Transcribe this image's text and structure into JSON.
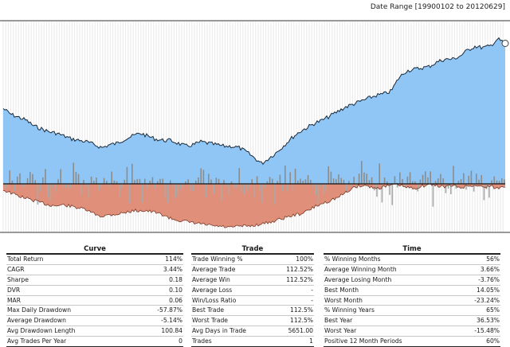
{
  "header": {
    "date_range": "Date Range [19900102 to 20120629]"
  },
  "colors": {
    "equity_fill": "#90c6f5",
    "drawdown_fill": "#e0907a",
    "bars_up": "#8c8c8c",
    "bars_down": "#a9a9a9",
    "line": "#1a2a3a"
  },
  "chart_data": {
    "type": "area",
    "x_range": [
      "19900102",
      "20120629"
    ],
    "series": [
      {
        "values": [
          0.52,
          0.48,
          0.46,
          0.44,
          0.4,
          0.38,
          0.36,
          0.35,
          0.33,
          0.31,
          0.3,
          0.29,
          0.27,
          0.25,
          0.27,
          0.28,
          0.31,
          0.33,
          0.35,
          0.33,
          0.31,
          0.3,
          0.3,
          0.28,
          0.26,
          0.27,
          0.29,
          0.28,
          0.27,
          0.26,
          0.26,
          0.25,
          0.22,
          0.18,
          0.14,
          0.18,
          0.22,
          0.27,
          0.32,
          0.36,
          0.39,
          0.42,
          0.44,
          0.47,
          0.5,
          0.53,
          0.55,
          0.57,
          0.59,
          0.61,
          0.62,
          0.64,
          0.73,
          0.78,
          0.79,
          0.8,
          0.81,
          0.84,
          0.86,
          0.86,
          0.88,
          0.92,
          0.95,
          0.94,
          0.95,
          1.0,
          0.97
        ]
      },
      {
        "values": [
          -0.08,
          -0.12,
          -0.16,
          -0.19,
          -0.22,
          -0.25,
          -0.28,
          -0.29,
          -0.28,
          -0.3,
          -0.32,
          -0.35,
          -0.4,
          -0.43,
          -0.41,
          -0.4,
          -0.38,
          -0.36,
          -0.35,
          -0.36,
          -0.38,
          -0.41,
          -0.46,
          -0.48,
          -0.5,
          -0.52,
          -0.53,
          -0.55,
          -0.56,
          -0.57,
          -0.58,
          -0.56,
          -0.56,
          -0.55,
          -0.53,
          -0.51,
          -0.48,
          -0.45,
          -0.42,
          -0.4,
          -0.36,
          -0.3,
          -0.26,
          -0.22,
          -0.18,
          -0.12,
          -0.05,
          -0.02,
          -0.03,
          -0.06,
          -0.04,
          -0.02,
          -0.01,
          -0.05,
          -0.06,
          -0.03,
          -0.01,
          -0.02,
          -0.04,
          -0.02,
          -0.05,
          -0.03,
          -0.02,
          -0.04,
          -0.03,
          -0.06,
          -0.03
        ]
      }
    ]
  },
  "tables": {
    "curve": {
      "title": "Curve",
      "rows": [
        {
          "label": "Total Return",
          "value": "114%"
        },
        {
          "label": "CAGR",
          "value": "3.44%"
        },
        {
          "label": "Sharpe",
          "value": "0.18"
        },
        {
          "label": "DVR",
          "value": "0.10"
        },
        {
          "label": "MAR",
          "value": "0.06"
        },
        {
          "label": "Max Daily Drawdown",
          "value": "-57.87%"
        },
        {
          "label": "Average Drawdown",
          "value": "-5.14%"
        },
        {
          "label": "Avg Drawdown Length",
          "value": "100.84"
        },
        {
          "label": "Avg Trades Per Year",
          "value": "0"
        }
      ]
    },
    "trade": {
      "title": "Trade",
      "rows": [
        {
          "label": "Trade Winning %",
          "value": "100%"
        },
        {
          "label": "Average Trade",
          "value": "112.52%"
        },
        {
          "label": "Average Win",
          "value": "112.52%"
        },
        {
          "label": "Average Loss",
          "value": "-"
        },
        {
          "label": "Win/Loss Ratio",
          "value": "-"
        },
        {
          "label": "Best Trade",
          "value": "112.5%"
        },
        {
          "label": "Worst Trade",
          "value": "112.5%"
        },
        {
          "label": "Avg Days in Trade",
          "value": "5651.00"
        },
        {
          "label": "Trades",
          "value": "1"
        }
      ]
    },
    "time": {
      "title": "Time",
      "rows": [
        {
          "label": "% Winning Months",
          "value": "56%"
        },
        {
          "label": "Average Winning Month",
          "value": "3.66%"
        },
        {
          "label": "Average Losing Month",
          "value": "-3.76%"
        },
        {
          "label": "Best Month",
          "value": "14.05%"
        },
        {
          "label": "Worst Month",
          "value": "-23.24%"
        },
        {
          "label": "% Winning Years",
          "value": "65%"
        },
        {
          "label": "Best Year",
          "value": "36.53%"
        },
        {
          "label": "Worst Year",
          "value": "-15.48%"
        },
        {
          "label": "Positive 12 Month Periods",
          "value": "60%"
        }
      ]
    }
  }
}
